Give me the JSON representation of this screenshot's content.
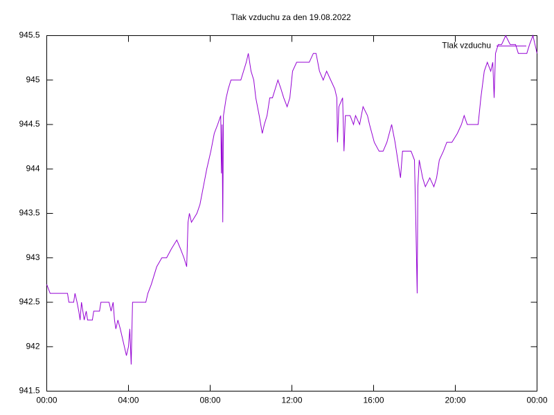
{
  "chart_data": {
    "type": "line",
    "title": "Tlak vzduchu za den 19.08.2022",
    "x": [
      0,
      10,
      61,
      65,
      79,
      83,
      89,
      94,
      98,
      102,
      106,
      110,
      116,
      120,
      134,
      138,
      155,
      159,
      183,
      189,
      195,
      199,
      203,
      209,
      216,
      222,
      228,
      234,
      240,
      244,
      248,
      252,
      291,
      297,
      307,
      315,
      323,
      338,
      352,
      366,
      382,
      393,
      403,
      411,
      415,
      419,
      425,
      441,
      450,
      460,
      470,
      482,
      492,
      502,
      511,
      513,
      515,
      517,
      519,
      527,
      533,
      541,
      570,
      578,
      586,
      592,
      600,
      608,
      614,
      624,
      633,
      639,
      647,
      655,
      663,
      671,
      679,
      688,
      696,
      706,
      714,
      722,
      734,
      759,
      771,
      783,
      791,
      801,
      812,
      822,
      834,
      846,
      852,
      854,
      858,
      869,
      873,
      877,
      891,
      901,
      907,
      919,
      929,
      942,
      948,
      962,
      976,
      988,
      999,
      1013,
      1023,
      1031,
      1039,
      1045,
      1070,
      1080,
      1084,
      1088,
      1090,
      1094,
      1104,
      1112,
      1125,
      1137,
      1145,
      1153,
      1165,
      1175,
      1190,
      1206,
      1218,
      1226,
      1235,
      1267,
      1275,
      1285,
      1294,
      1304,
      1310,
      1314,
      1318,
      1326,
      1336,
      1348,
      1361,
      1377,
      1385,
      1393,
      1410,
      1418,
      1428,
      1434,
      1440
    ],
    "series": [
      {
        "name": "Tlak vzduchu",
        "color": "#9400d3",
        "values": [
          942.7,
          942.6,
          942.6,
          942.5,
          942.5,
          942.6,
          942.5,
          942.4,
          942.3,
          942.5,
          942.4,
          942.3,
          942.4,
          942.3,
          942.3,
          942.4,
          942.4,
          942.5,
          942.5,
          942.4,
          942.5,
          942.3,
          942.2,
          942.3,
          942.2,
          942.1,
          942.0,
          941.9,
          942.0,
          942.2,
          941.8,
          942.5,
          942.5,
          942.6,
          942.7,
          942.8,
          942.9,
          943.0,
          943.0,
          943.1,
          943.2,
          943.1,
          943.0,
          942.9,
          943.4,
          943.5,
          943.4,
          943.5,
          943.6,
          943.8,
          944.0,
          944.2,
          944.4,
          944.5,
          944.6,
          943.95,
          944.5,
          943.4,
          944.6,
          944.8,
          944.9,
          945.0,
          945.0,
          945.1,
          945.2,
          945.3,
          945.1,
          945.0,
          944.8,
          944.6,
          944.4,
          944.5,
          944.6,
          944.8,
          944.8,
          944.9,
          945.0,
          944.9,
          944.8,
          944.7,
          944.8,
          945.1,
          945.2,
          945.2,
          945.2,
          945.3,
          945.3,
          945.1,
          945.0,
          945.1,
          945.0,
          944.9,
          944.8,
          944.3,
          944.7,
          944.8,
          944.2,
          944.6,
          944.6,
          944.5,
          944.6,
          944.5,
          944.7,
          944.6,
          944.5,
          944.3,
          944.2,
          944.2,
          944.3,
          944.5,
          944.3,
          944.1,
          943.9,
          944.2,
          944.2,
          944.1,
          943.4,
          942.6,
          943.8,
          944.1,
          943.9,
          943.8,
          943.9,
          943.8,
          943.9,
          944.1,
          944.2,
          944.3,
          944.3,
          944.4,
          944.5,
          944.6,
          944.5,
          944.5,
          944.8,
          945.1,
          945.2,
          945.1,
          945.2,
          944.8,
          945.3,
          945.4,
          945.4,
          945.5,
          945.4,
          945.4,
          945.3,
          945.3,
          945.3,
          945.4,
          945.5,
          945.4,
          945.3
        ]
      }
    ],
    "xlim": [
      0,
      1440
    ],
    "xticks": [
      {
        "value": 0,
        "label": "00:00"
      },
      {
        "value": 240,
        "label": "04:00"
      },
      {
        "value": 480,
        "label": "08:00"
      },
      {
        "value": 720,
        "label": "12:00"
      },
      {
        "value": 960,
        "label": "16:00"
      },
      {
        "value": 1200,
        "label": "20:00"
      },
      {
        "value": 1440,
        "label": "00:00"
      }
    ],
    "ylim": [
      941.5,
      945.5
    ],
    "yticks": [
      941.5,
      942,
      942.5,
      943,
      943.5,
      944,
      944.5,
      945,
      945.5
    ],
    "grid": false,
    "legend": "top-right"
  }
}
